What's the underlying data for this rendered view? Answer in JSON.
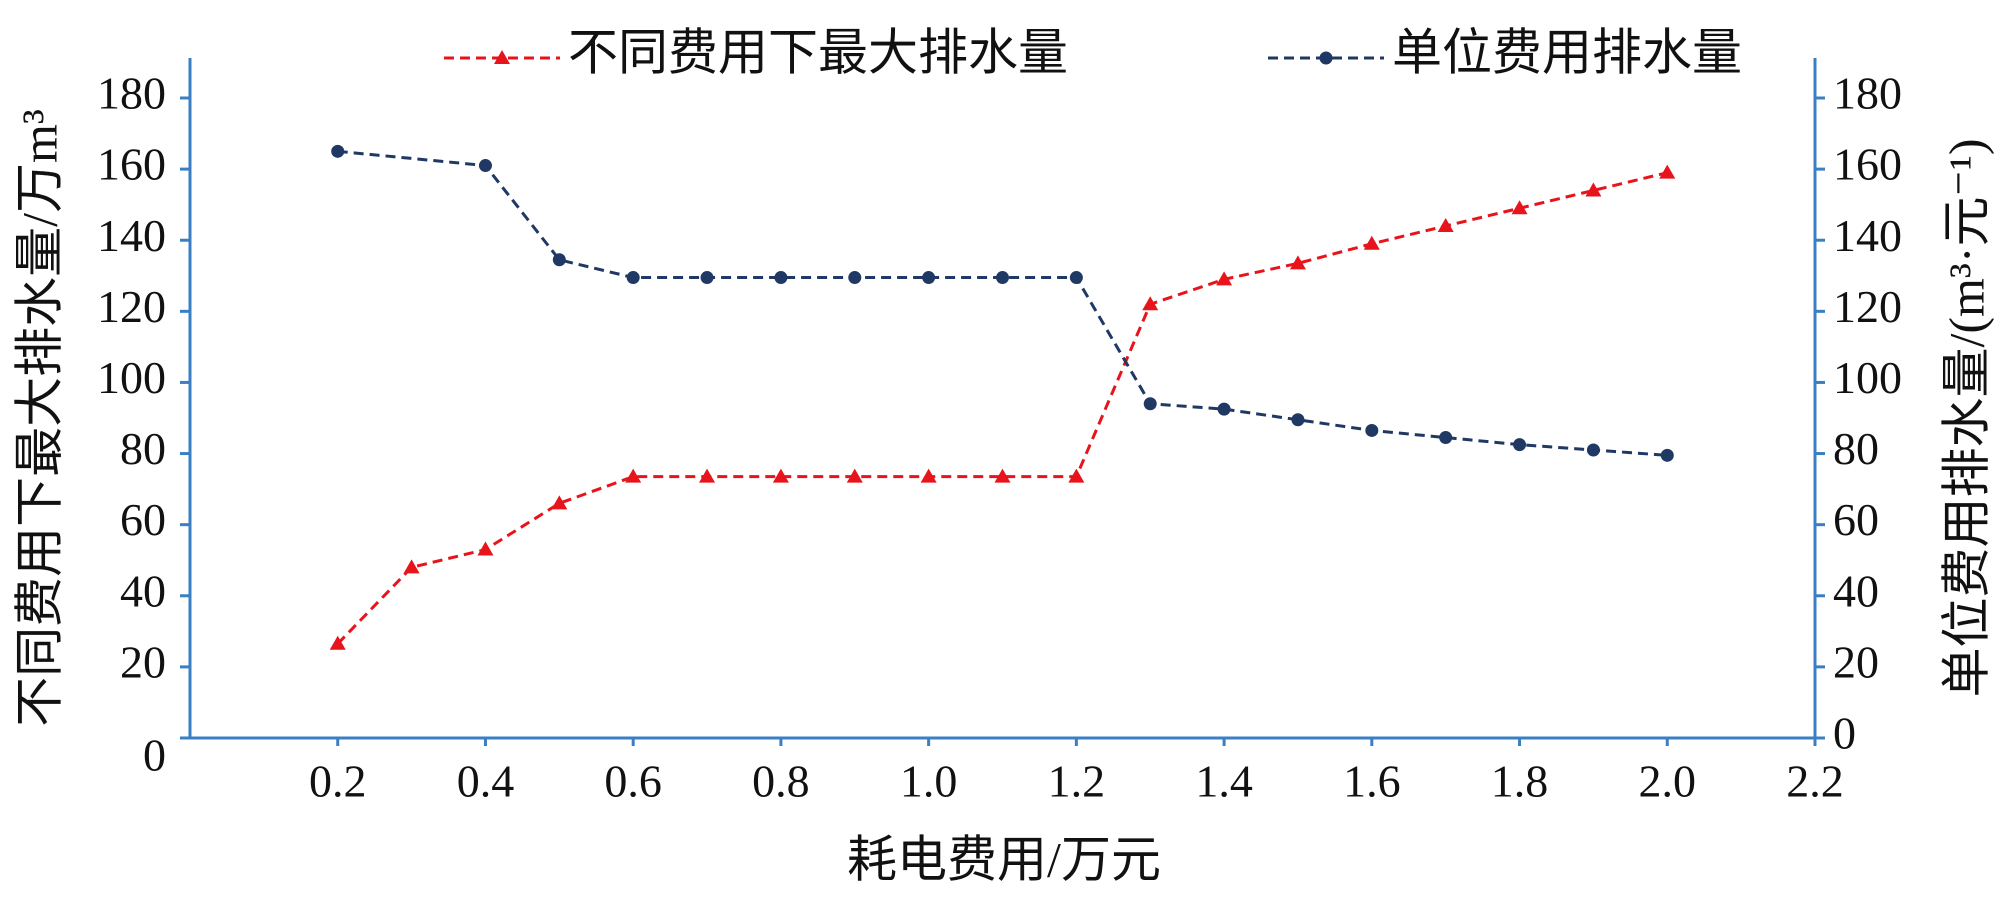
{
  "chart_data": {
    "type": "line",
    "x_label": "耗电费用/万元",
    "y_label": "不同费用下最大排水量/万m³",
    "y2_label": "单位费用排水量/(m³·元⁻¹)",
    "xlim": [
      0,
      2.2
    ],
    "xticks": [
      0.2,
      0.4,
      0.6,
      0.8,
      {
        "value": 1,
        "label": "1.0"
      },
      1.2,
      1.4,
      1.6,
      1.8,
      {
        "value": 2,
        "label": "2.0"
      },
      2.2
    ],
    "ylim": [
      0,
      180
    ],
    "yticks": [
      0,
      20,
      40,
      60,
      80,
      100,
      120,
      140,
      160,
      180
    ],
    "y2lim": [
      0,
      180
    ],
    "y2ticks": [
      0,
      20,
      40,
      60,
      80,
      100,
      120,
      140,
      160,
      180
    ],
    "axis_color": "#3a7fc4",
    "series": [
      {
        "name": "不同费用下最大排水量",
        "color": "#e8141b",
        "marker": "triangle",
        "axis": "y",
        "x": [
          0.2,
          0.3,
          0.4,
          0.5,
          0.6,
          0.7,
          0.8,
          0.9,
          1.0,
          1.1,
          1.2,
          1.3,
          1.4,
          1.5,
          1.6,
          1.7,
          1.8,
          1.9,
          2.0
        ],
        "values": [
          26.5,
          48,
          53,
          66,
          73.5,
          73.5,
          73.5,
          73.5,
          73.5,
          73.5,
          73.5,
          122,
          129,
          133.5,
          139,
          144,
          149,
          154,
          159
        ]
      },
      {
        "name": "单位费用排水量",
        "color": "#1f3864",
        "marker": "circle",
        "axis": "y2",
        "x": [
          0.2,
          0.4,
          0.5,
          0.6,
          0.7,
          0.8,
          0.9,
          1.0,
          1.1,
          1.2,
          1.3,
          1.4,
          1.5,
          1.6,
          1.7,
          1.8,
          1.9,
          2.0
        ],
        "values": [
          165,
          161,
          134.5,
          129.5,
          129.5,
          129.5,
          129.5,
          129.5,
          129.5,
          129.5,
          94,
          92.5,
          89.5,
          86.5,
          84.5,
          82.5,
          81,
          79.5
        ]
      }
    ]
  }
}
